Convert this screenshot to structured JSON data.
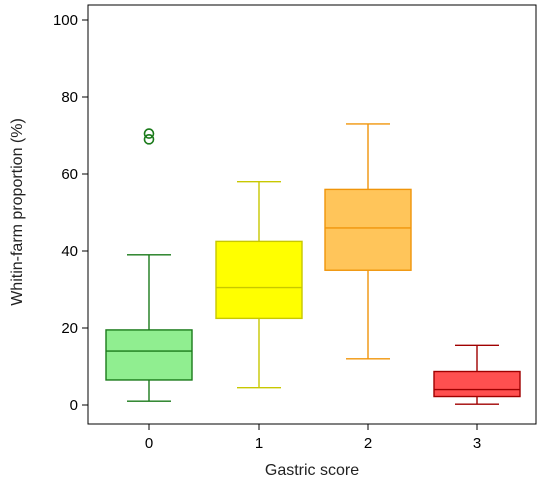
{
  "chart_data": {
    "type": "box",
    "title": "",
    "xlabel": "Gastric score",
    "ylabel": "Whitin-farm proportion (%)",
    "ylim": [
      0,
      100
    ],
    "yticks": [
      0,
      20,
      40,
      60,
      80,
      100
    ],
    "grid": false,
    "legend": "none",
    "categories": [
      "0",
      "1",
      "2",
      "3"
    ],
    "boxes": [
      {
        "category": "0",
        "whisker_low": 1,
        "q1": 6.5,
        "median": 14,
        "q3": 19.5,
        "whisker_high": 39,
        "outliers": [
          69,
          70.5
        ],
        "fill": "#90ee90",
        "stroke": "#1a7a1a"
      },
      {
        "category": "1",
        "whisker_low": 4.5,
        "q1": 22.5,
        "median": 30.5,
        "q3": 42.5,
        "whisker_high": 58,
        "outliers": [],
        "fill": "#ffff00",
        "stroke": "#c8c800"
      },
      {
        "category": "2",
        "whisker_low": 12,
        "q1": 35,
        "median": 46,
        "q3": 56,
        "whisker_high": 73,
        "outliers": [],
        "fill": "#ffc55a",
        "stroke": "#f0950a"
      },
      {
        "category": "3",
        "whisker_low": 0.2,
        "q1": 2.2,
        "median": 4,
        "q3": 8.7,
        "whisker_high": 15.5,
        "outliers": [],
        "fill": "#ff5050",
        "stroke": "#a00000"
      }
    ]
  }
}
